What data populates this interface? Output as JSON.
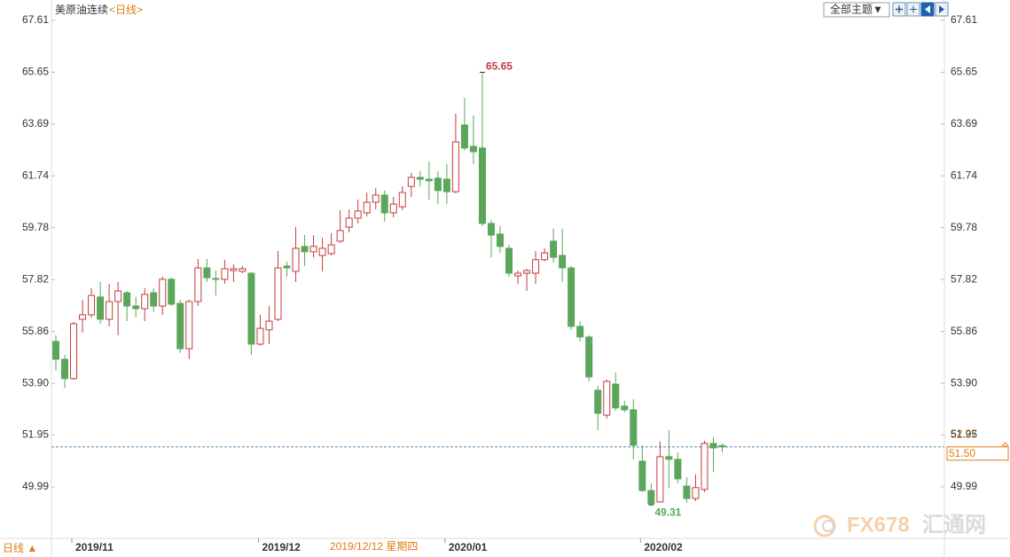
{
  "chart_data": {
    "type": "candlestick",
    "title": "美原油连续",
    "period": "<日线>",
    "theme_button": "全部主题▼",
    "bottom_period": "日线 ▲",
    "crosshair_label": "2019/12/12 星期四",
    "indicator_label": "52.27",
    "watermark": [
      "FX678",
      "汇通网"
    ],
    "up_color": "#c43b3b",
    "down_color": "#5aa65a",
    "line_color": "#4f86b5",
    "ylim": [
      48.11,
      68.38
    ],
    "yticks": [
      49.99,
      51.95,
      {
        "value": 53.9,
        "label": "53.90"
      },
      55.86,
      57.82,
      59.78,
      61.74,
      63.69,
      65.65,
      67.61
    ],
    "last_price": {
      "value": 51.5,
      "label": "51.50"
    },
    "categories": [
      null,
      null,
      "2019/11",
      null,
      null,
      null,
      null,
      null,
      null,
      null,
      null,
      null,
      null,
      null,
      null,
      null,
      null,
      null,
      null,
      null,
      null,
      null,
      null,
      "2019/12",
      null,
      null,
      null,
      null,
      null,
      null,
      null,
      null,
      null,
      null,
      null,
      null,
      null,
      null,
      null,
      null,
      null,
      null,
      null,
      null,
      "2020/01",
      null,
      null,
      null,
      null,
      null,
      null,
      null,
      null,
      null,
      null,
      null,
      null,
      null,
      null,
      null,
      null,
      null,
      null,
      null,
      null,
      null,
      "2020/02",
      null,
      null,
      null,
      null,
      null,
      null,
      null,
      null,
      null
    ],
    "open": [
      55.48,
      54.81,
      54.08,
      56.32,
      56.49,
      57.16,
      56.32,
      56.99,
      57.32,
      56.82,
      56.72,
      57.32,
      56.82,
      57.83,
      56.92,
      55.21,
      56.99,
      58.26,
      57.86,
      57.83,
      58.16,
      58.13,
      58.06,
      55.38,
      55.92,
      56.32,
      58.33,
      58.13,
      59.07,
      58.87,
      58.73,
      58.8,
      59.27,
      59.8,
      60.14,
      60.34,
      60.74,
      61.01,
      60.34,
      60.57,
      61.34,
      61.68,
      61.61,
      61.65,
      61.61,
      61.14,
      63.66,
      62.85,
      62.79,
      59.94,
      59.54,
      59.0,
      57.96,
      58.06,
      58.06,
      58.57,
      59.27,
      58.73,
      58.26,
      56.05,
      55.65,
      53.64,
      52.7,
      53.87,
      53.04,
      52.9,
      50.96,
      49.85,
      49.42,
      51.13,
      51.03,
      50.02,
      49.55,
      49.89,
      51.63,
      51.55
    ],
    "high": [
      55.72,
      54.98,
      56.22,
      57.06,
      57.49,
      57.73,
      57.66,
      57.73,
      57.39,
      57.16,
      57.49,
      57.49,
      57.93,
      57.9,
      57.06,
      57.06,
      58.6,
      58.6,
      58.16,
      58.57,
      58.4,
      58.33,
      58.09,
      56.49,
      56.82,
      58.9,
      58.5,
      59.8,
      59.5,
      59.5,
      59.4,
      59.57,
      60.44,
      60.47,
      60.84,
      61.11,
      61.28,
      61.18,
      60.94,
      61.34,
      61.85,
      61.91,
      62.28,
      61.91,
      62.18,
      64.09,
      64.69,
      64.02,
      65.65,
      60.07,
      59.84,
      59.13,
      58.16,
      58.23,
      58.9,
      59.0,
      59.74,
      59.74,
      58.33,
      56.25,
      55.72,
      53.81,
      54.04,
      54.31,
      53.24,
      53.3,
      51.56,
      50.12,
      51.7,
      52.13,
      51.29,
      50.36,
      50.46,
      51.73,
      51.87,
      51.63
    ],
    "low": [
      54.38,
      53.71,
      54.04,
      55.82,
      56.39,
      56.15,
      56.05,
      55.72,
      56.25,
      56.39,
      56.25,
      56.59,
      56.49,
      56.82,
      55.05,
      54.81,
      56.82,
      57.73,
      57.22,
      57.66,
      57.73,
      58.06,
      54.98,
      55.32,
      55.38,
      56.25,
      57.93,
      57.73,
      58.33,
      58.66,
      58.13,
      58.73,
      59.2,
      59.6,
      59.94,
      60.21,
      60.47,
      60.0,
      60.17,
      60.44,
      60.94,
      61.34,
      60.84,
      60.67,
      60.67,
      61.08,
      62.69,
      62.18,
      59.84,
      58.66,
      58.83,
      57.93,
      57.66,
      57.39,
      57.66,
      58.5,
      58.46,
      57.73,
      55.92,
      55.48,
      53.97,
      52.13,
      52.57,
      52.87,
      52.8,
      51.03,
      49.79,
      49.31,
      49.39,
      49.95,
      50.12,
      49.39,
      49.45,
      49.79,
      50.56,
      51.29
    ],
    "close": [
      54.81,
      54.08,
      56.15,
      56.49,
      57.22,
      56.32,
      56.99,
      57.39,
      56.82,
      56.72,
      57.26,
      56.82,
      57.83,
      56.89,
      55.21,
      56.99,
      58.26,
      57.89,
      57.83,
      58.23,
      58.23,
      58.23,
      55.38,
      55.98,
      56.25,
      58.26,
      58.26,
      59.0,
      58.87,
      59.07,
      59.0,
      59.13,
      59.67,
      60.14,
      60.41,
      60.74,
      61.01,
      60.34,
      60.67,
      61.11,
      61.68,
      61.61,
      61.55,
      61.18,
      61.14,
      63.02,
      62.79,
      62.65,
      59.94,
      59.5,
      59.07,
      58.06,
      58.06,
      58.16,
      58.57,
      58.83,
      58.66,
      58.26,
      56.05,
      55.65,
      54.14,
      52.77,
      53.97,
      52.97,
      52.9,
      51.56,
      49.85,
      49.35,
      51.13,
      51.03,
      50.29,
      49.55,
      49.96,
      51.63,
      51.46,
      51.5
    ]
  }
}
